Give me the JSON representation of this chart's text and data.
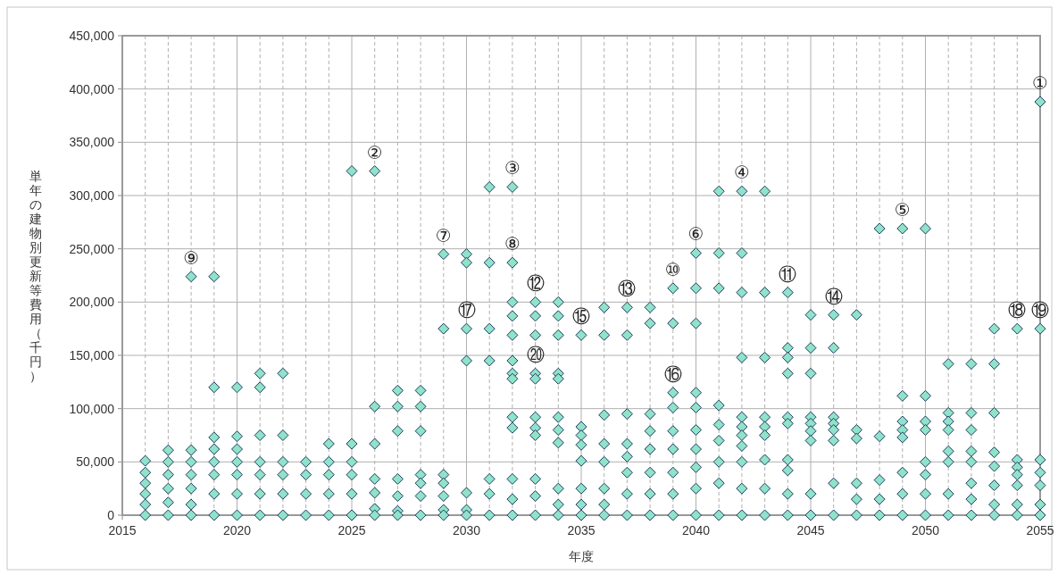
{
  "chart_data": {
    "type": "scatter",
    "xlabel": "年度",
    "ylabel": "単年の建物別更新等費用（千円）",
    "xlim": [
      2015,
      2055
    ],
    "ylim": [
      0,
      450000
    ],
    "grid": true,
    "marker": "diamond",
    "xticks": [
      2015,
      {
        "value": 2016,
        "label": null
      },
      {
        "value": 2017,
        "label": null
      },
      {
        "value": 2018,
        "label": null
      },
      {
        "value": 2019,
        "label": null
      },
      2020,
      {
        "value": 2021,
        "label": null
      },
      {
        "value": 2022,
        "label": null
      },
      {
        "value": 2023,
        "label": null
      },
      {
        "value": 2024,
        "label": null
      },
      2025,
      {
        "value": 2026,
        "label": null
      },
      {
        "value": 2027,
        "label": null
      },
      {
        "value": 2028,
        "label": null
      },
      {
        "value": 2029,
        "label": null
      },
      2030,
      {
        "value": 2031,
        "label": null
      },
      {
        "value": 2032,
        "label": null
      },
      {
        "value": 2033,
        "label": null
      },
      {
        "value": 2034,
        "label": null
      },
      2035,
      {
        "value": 2036,
        "label": null
      },
      {
        "value": 2037,
        "label": null
      },
      {
        "value": 2038,
        "label": null
      },
      {
        "value": 2039,
        "label": null
      },
      2040,
      {
        "value": 2041,
        "label": null
      },
      {
        "value": 2042,
        "label": null
      },
      {
        "value": 2043,
        "label": null
      },
      {
        "value": 2044,
        "label": null
      },
      2045,
      {
        "value": 2046,
        "label": null
      },
      {
        "value": 2047,
        "label": null
      },
      {
        "value": 2048,
        "label": null
      },
      {
        "value": 2049,
        "label": null
      },
      2050,
      {
        "value": 2051,
        "label": null
      },
      {
        "value": 2052,
        "label": null
      },
      {
        "value": 2053,
        "label": null
      },
      {
        "value": 2054,
        "label": null
      },
      2055
    ],
    "yticks": [
      {
        "value": 0,
        "label": "0"
      },
      {
        "value": 50000,
        "label": "50,000"
      },
      {
        "value": 100000,
        "label": "100,000"
      },
      {
        "value": 150000,
        "label": "150,000"
      },
      {
        "value": 200000,
        "label": "200,000"
      },
      {
        "value": 250000,
        "label": "250,000"
      },
      {
        "value": 300000,
        "label": "300,000"
      },
      {
        "value": 350000,
        "label": "350,000"
      },
      {
        "value": 400000,
        "label": "400,000"
      },
      {
        "value": 450000,
        "label": "450,000"
      }
    ],
    "series": [
      {
        "color": "#8fe3c8",
        "x": [
          2016,
          2016,
          2016,
          2016,
          2016,
          2016,
          2017,
          2017,
          2017,
          2017,
          2017,
          2017,
          2018,
          2018,
          2018,
          2018,
          2018,
          2018,
          2018,
          2019,
          2019,
          2019,
          2019,
          2019,
          2019,
          2019,
          2019,
          2020,
          2020,
          2020,
          2020,
          2020,
          2020,
          2020,
          2021,
          2021,
          2021,
          2021,
          2021,
          2021,
          2021,
          2022,
          2022,
          2022,
          2022,
          2022,
          2022,
          2023,
          2023,
          2023,
          2023,
          2024,
          2024,
          2024,
          2024,
          2024,
          2025,
          2025,
          2025,
          2025,
          2025,
          2025,
          2026,
          2026,
          2026,
          2026,
          2026,
          2026,
          2026,
          2027,
          2027,
          2027,
          2027,
          2027,
          2027,
          2027,
          2028,
          2028,
          2028,
          2028,
          2028,
          2028,
          2028,
          2029,
          2029,
          2029,
          2029,
          2029,
          2029,
          2029,
          2030,
          2030,
          2030,
          2030,
          2030,
          2030,
          2030,
          2031,
          2031,
          2031,
          2031,
          2031,
          2031,
          2031,
          2032,
          2032,
          2032,
          2032,
          2032,
          2032,
          2032,
          2032,
          2032,
          2032,
          2032,
          2032,
          2032,
          2033,
          2033,
          2033,
          2033,
          2033,
          2033,
          2033,
          2033,
          2033,
          2033,
          2033,
          2034,
          2034,
          2034,
          2034,
          2034,
          2034,
          2034,
          2034,
          2034,
          2034,
          2034,
          2035,
          2035,
          2035,
          2035,
          2035,
          2035,
          2035,
          2035,
          2036,
          2036,
          2036,
          2036,
          2036,
          2036,
          2036,
          2036,
          2037,
          2037,
          2037,
          2037,
          2037,
          2037,
          2037,
          2037,
          2038,
          2038,
          2038,
          2038,
          2038,
          2038,
          2038,
          2038,
          2039,
          2039,
          2039,
          2039,
          2039,
          2039,
          2039,
          2039,
          2039,
          2040,
          2040,
          2040,
          2040,
          2040,
          2040,
          2040,
          2040,
          2040,
          2040,
          2041,
          2041,
          2041,
          2041,
          2041,
          2041,
          2041,
          2041,
          2041,
          2042,
          2042,
          2042,
          2042,
          2042,
          2042,
          2042,
          2042,
          2042,
          2042,
          2042,
          2043,
          2043,
          2043,
          2043,
          2043,
          2043,
          2043,
          2043,
          2043,
          2044,
          2044,
          2044,
          2044,
          2044,
          2044,
          2044,
          2044,
          2044,
          2044,
          2045,
          2045,
          2045,
          2045,
          2045,
          2045,
          2045,
          2045,
          2045,
          2046,
          2046,
          2046,
          2046,
          2046,
          2046,
          2046,
          2046,
          2047,
          2047,
          2047,
          2047,
          2047,
          2047,
          2048,
          2048,
          2048,
          2048,
          2048,
          2049,
          2049,
          2049,
          2049,
          2049,
          2049,
          2049,
          2049,
          2050,
          2050,
          2050,
          2050,
          2050,
          2050,
          2050,
          2050,
          2051,
          2051,
          2051,
          2051,
          2051,
          2051,
          2051,
          2051,
          2052,
          2052,
          2052,
          2052,
          2052,
          2052,
          2052,
          2052,
          2053,
          2053,
          2053,
          2053,
          2053,
          2053,
          2053,
          2053,
          2054,
          2054,
          2054,
          2054,
          2054,
          2054,
          2054,
          2055,
          2055,
          2055,
          2055,
          2055,
          2055,
          2055
        ],
        "values": [
          51000,
          40000,
          30000,
          20000,
          10000,
          0,
          61000,
          50000,
          38000,
          25000,
          12000,
          0,
          224000,
          61000,
          50000,
          38000,
          25000,
          10000,
          0,
          224000,
          120000,
          73000,
          62000,
          50000,
          38000,
          20000,
          0,
          120000,
          74000,
          62000,
          50000,
          38000,
          20000,
          0,
          133000,
          120000,
          75000,
          50000,
          38000,
          20000,
          0,
          133000,
          75000,
          50000,
          38000,
          20000,
          0,
          50000,
          38000,
          20000,
          0,
          67000,
          50000,
          38000,
          20000,
          0,
          323000,
          67000,
          50000,
          38000,
          20000,
          0,
          323000,
          102000,
          67000,
          34000,
          21000,
          6000,
          0,
          117000,
          102000,
          79000,
          34000,
          18000,
          4000,
          0,
          117000,
          102000,
          79000,
          38000,
          30000,
          18000,
          0,
          245000,
          175000,
          38000,
          30000,
          18000,
          5000,
          0,
          245000,
          237000,
          175000,
          145000,
          21000,
          5000,
          0,
          308000,
          237000,
          175000,
          145000,
          34000,
          20000,
          0,
          308000,
          237000,
          200000,
          187000,
          169000,
          145000,
          133000,
          128000,
          92000,
          82000,
          34000,
          15000,
          0,
          200000,
          187000,
          169000,
          133000,
          128000,
          92000,
          82000,
          75000,
          34000,
          18000,
          0,
          200000,
          187000,
          169000,
          133000,
          128000,
          92000,
          80000,
          68000,
          25000,
          10000,
          0,
          169000,
          83000,
          75000,
          66000,
          51000,
          25000,
          10000,
          0,
          195000,
          169000,
          94000,
          67000,
          50000,
          25000,
          10000,
          0,
          195000,
          169000,
          95000,
          67000,
          55000,
          40000,
          20000,
          0,
          195000,
          180000,
          95000,
          79000,
          62000,
          40000,
          20000,
          0,
          213000,
          180000,
          115000,
          101000,
          79000,
          62000,
          40000,
          20000,
          0,
          246000,
          213000,
          180000,
          115000,
          101000,
          80000,
          62000,
          45000,
          25000,
          0,
          304000,
          246000,
          213000,
          103000,
          85000,
          70000,
          50000,
          30000,
          0,
          304000,
          246000,
          209000,
          148000,
          92000,
          83000,
          75000,
          65000,
          50000,
          25000,
          0,
          304000,
          209000,
          148000,
          92000,
          83000,
          75000,
          52000,
          25000,
          0,
          209000,
          157000,
          148000,
          133000,
          92000,
          86000,
          52000,
          42000,
          20000,
          0,
          188000,
          157000,
          133000,
          92000,
          86000,
          79000,
          70000,
          20000,
          0,
          188000,
          157000,
          92000,
          86000,
          80000,
          70000,
          30000,
          0,
          188000,
          80000,
          72000,
          30000,
          15000,
          0,
          269000,
          74000,
          33000,
          15000,
          0,
          269000,
          112000,
          88000,
          80000,
          73000,
          40000,
          20000,
          0,
          269000,
          112000,
          88000,
          80000,
          50000,
          38000,
          20000,
          0,
          142000,
          96000,
          88000,
          80000,
          60000,
          50000,
          20000,
          0,
          142000,
          96000,
          80000,
          60000,
          50000,
          30000,
          15000,
          0,
          175000,
          142000,
          96000,
          59000,
          46000,
          28000,
          10000,
          0,
          175000,
          52000,
          45000,
          38000,
          28000,
          10000,
          0,
          388000,
          175000,
          52000,
          40000,
          28000,
          10000,
          0
        ]
      }
    ],
    "annotations": [
      {
        "text": "①",
        "x": 2055,
        "y": 388000
      },
      {
        "text": "②",
        "x": 2026,
        "y": 323000
      },
      {
        "text": "③",
        "x": 2032,
        "y": 308000
      },
      {
        "text": "④",
        "x": 2042,
        "y": 304000
      },
      {
        "text": "⑤",
        "x": 2049,
        "y": 269000
      },
      {
        "text": "⑥",
        "x": 2040,
        "y": 246000
      },
      {
        "text": "⑦",
        "x": 2029,
        "y": 245000
      },
      {
        "text": "⑧",
        "x": 2032,
        "y": 237000
      },
      {
        "text": "⑨",
        "x": 2018,
        "y": 224000
      },
      {
        "text": "⑩",
        "x": 2039,
        "y": 213000
      },
      {
        "text": "⑪",
        "x": 2044,
        "y": 209000
      },
      {
        "text": "⑫",
        "x": 2033,
        "y": 200000
      },
      {
        "text": "⑬",
        "x": 2037,
        "y": 195000
      },
      {
        "text": "⑭",
        "x": 2046,
        "y": 188000
      },
      {
        "text": "⑮",
        "x": 2035,
        "y": 169000
      },
      {
        "text": "⑯",
        "x": 2039,
        "y": 115000
      },
      {
        "text": "⑰",
        "x": 2030,
        "y": 175000
      },
      {
        "text": "⑱",
        "x": 2054,
        "y": 175000
      },
      {
        "text": "⑲",
        "x": 2055,
        "y": 175000
      },
      {
        "text": "⑳",
        "x": 2033,
        "y": 133000
      }
    ]
  }
}
